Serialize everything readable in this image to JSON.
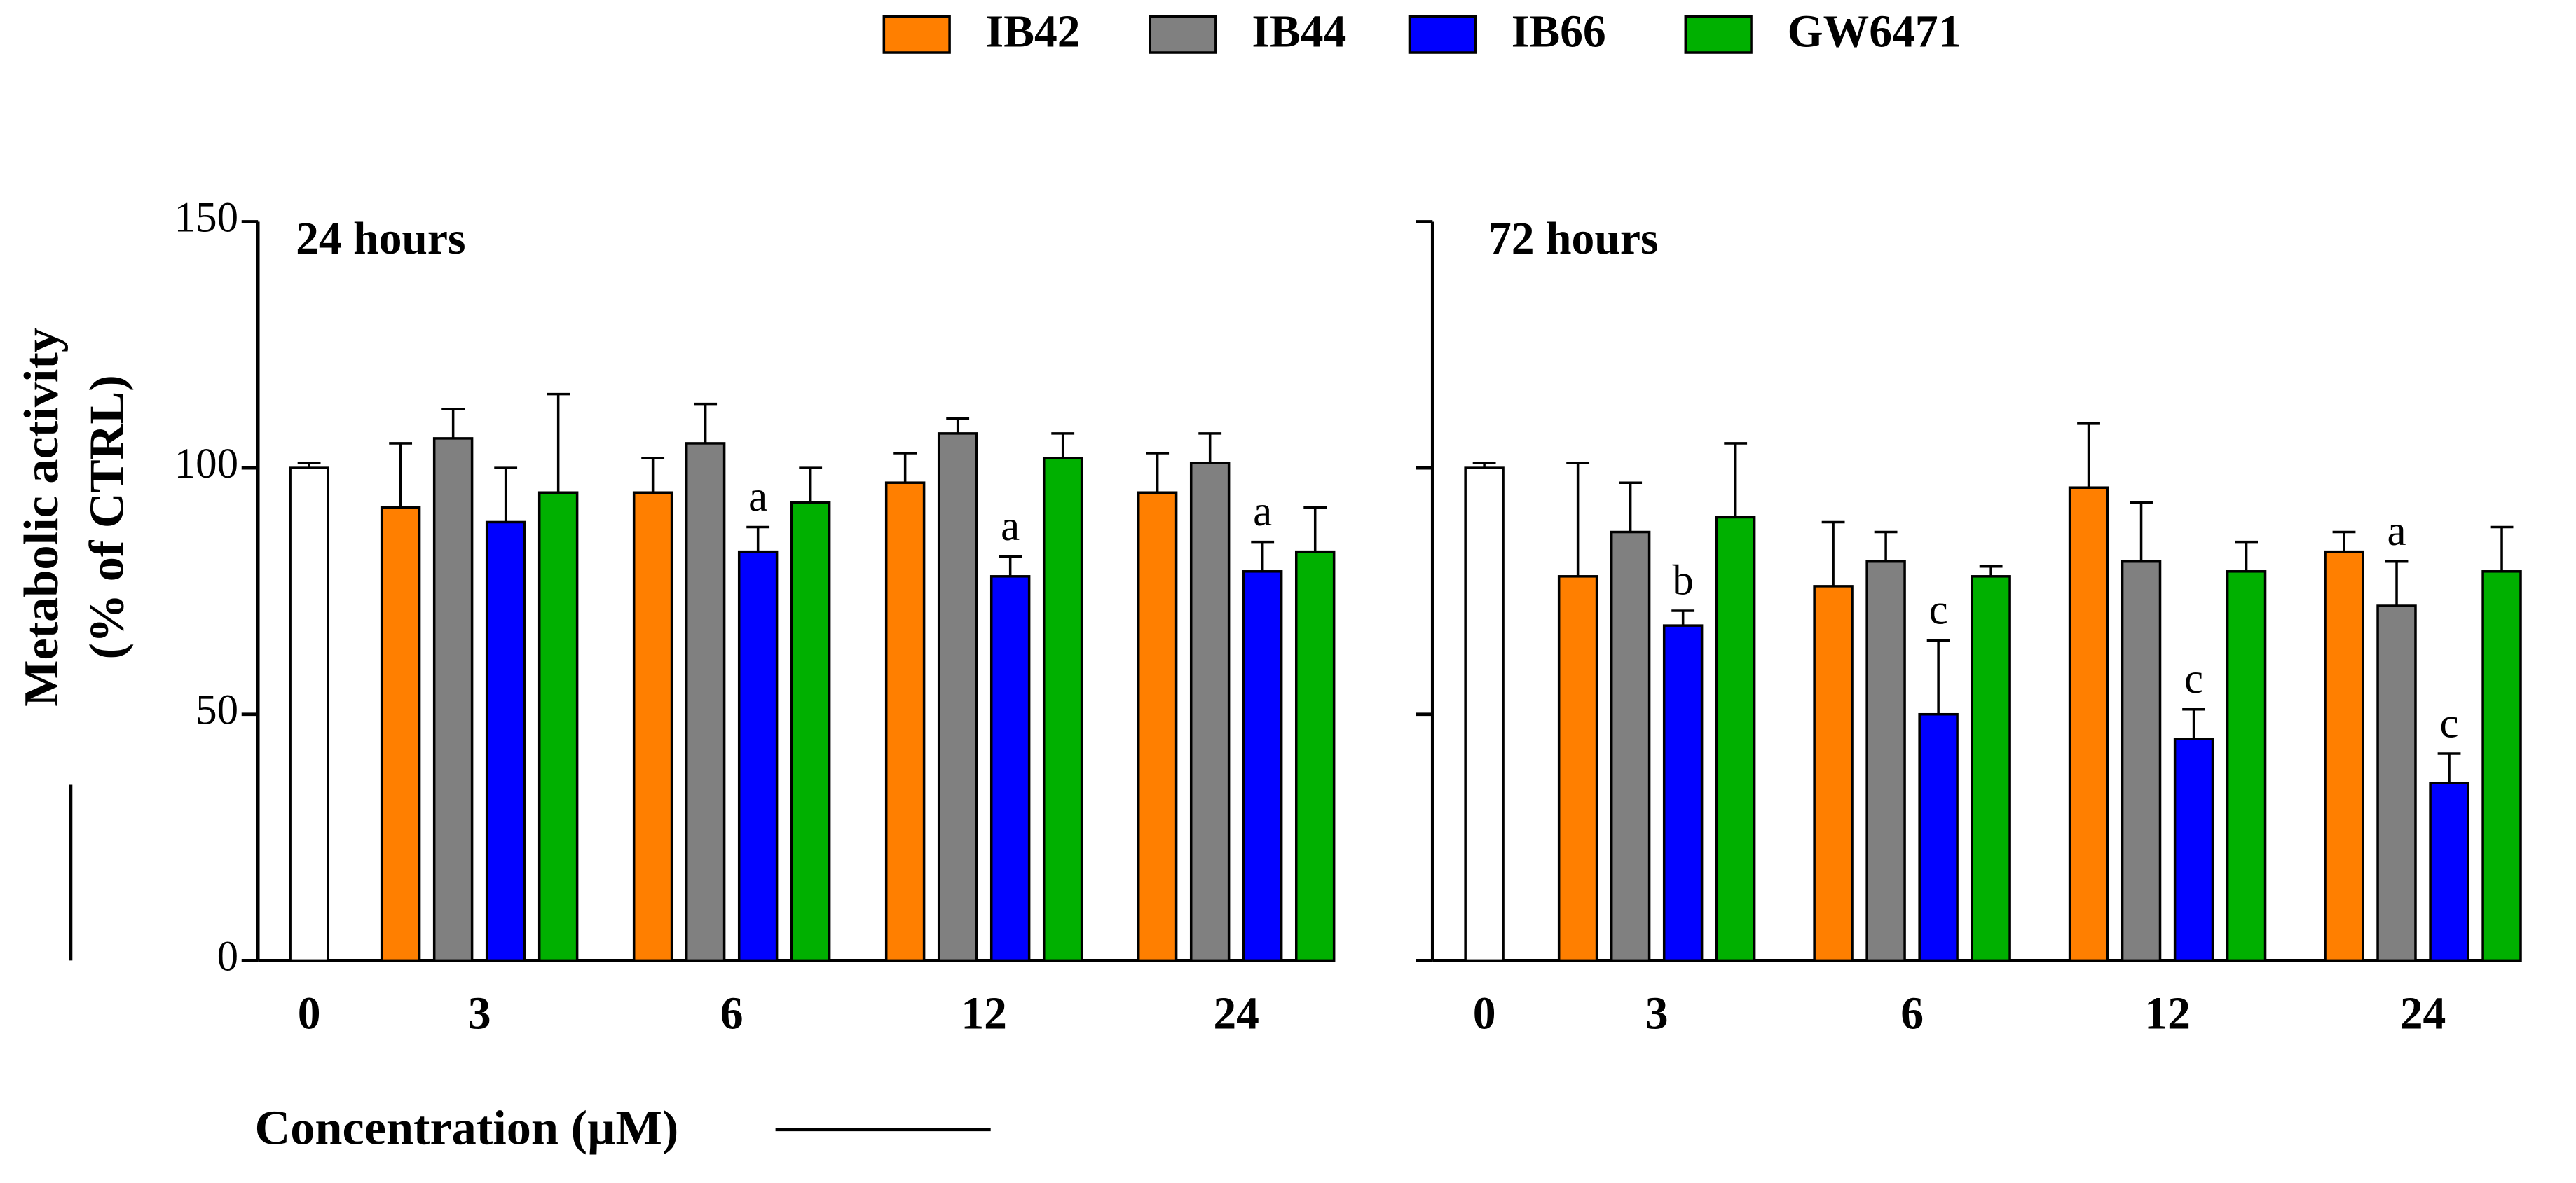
{
  "chart_data": [
    {
      "type": "bar",
      "title": "24 hours",
      "ylabel": [
        "Metabolic activity",
        "(% of CTRL)"
      ],
      "xlabel": "Concentration (µM)",
      "categories": [
        "0",
        "3",
        "6",
        "12",
        "24"
      ],
      "control": {
        "value": 100,
        "error": 1,
        "color": "#ffffff"
      },
      "series": [
        {
          "name": "IB42",
          "color": "#ff7f00",
          "values": [
            null,
            92,
            95,
            97,
            95
          ],
          "errors": [
            null,
            13,
            7,
            6,
            8
          ],
          "annotations": [
            null,
            null,
            null,
            null,
            null
          ]
        },
        {
          "name": "IB44",
          "color": "#808080",
          "values": [
            null,
            106,
            105,
            107,
            101
          ],
          "errors": [
            null,
            6,
            8,
            3,
            6
          ],
          "annotations": [
            null,
            null,
            null,
            null,
            null
          ]
        },
        {
          "name": "IB66",
          "color": "#0000ff",
          "values": [
            null,
            89,
            83,
            78,
            79
          ],
          "errors": [
            null,
            11,
            5,
            4,
            6
          ],
          "annotations": [
            null,
            null,
            "a",
            "a",
            "a"
          ]
        },
        {
          "name": "GW6471",
          "color": "#00b000",
          "values": [
            null,
            95,
            93,
            102,
            83
          ],
          "errors": [
            null,
            20,
            7,
            5,
            9
          ],
          "annotations": [
            null,
            null,
            null,
            null,
            null
          ]
        }
      ],
      "ylim": [
        0,
        150
      ],
      "yticks": [
        0,
        50,
        100,
        150
      ],
      "show_ytick_labels": true
    },
    {
      "type": "bar",
      "title": "72 hours",
      "categories": [
        "0",
        "3",
        "6",
        "12",
        "24"
      ],
      "control": {
        "value": 100,
        "error": 1,
        "color": "#ffffff"
      },
      "series": [
        {
          "name": "IB42",
          "color": "#ff7f00",
          "values": [
            null,
            78,
            76,
            96,
            83
          ],
          "errors": [
            null,
            23,
            13,
            13,
            4
          ],
          "annotations": [
            null,
            null,
            null,
            null,
            null
          ]
        },
        {
          "name": "IB44",
          "color": "#808080",
          "values": [
            null,
            87,
            81,
            81,
            72
          ],
          "errors": [
            null,
            10,
            6,
            12,
            9
          ],
          "annotations": [
            null,
            null,
            null,
            null,
            "a"
          ]
        },
        {
          "name": "IB66",
          "color": "#0000ff",
          "values": [
            null,
            68,
            50,
            45,
            36
          ],
          "errors": [
            null,
            3,
            15,
            6,
            6
          ],
          "annotations": [
            null,
            "b",
            "c",
            "c",
            "c"
          ]
        },
        {
          "name": "GW6471",
          "color": "#00b000",
          "values": [
            null,
            90,
            78,
            79,
            79
          ],
          "errors": [
            null,
            15,
            2,
            6,
            9
          ],
          "annotations": [
            null,
            null,
            null,
            null,
            null
          ]
        }
      ],
      "ylim": [
        0,
        150
      ],
      "yticks": [
        0,
        50,
        100,
        150
      ],
      "show_ytick_labels": false
    }
  ]
}
